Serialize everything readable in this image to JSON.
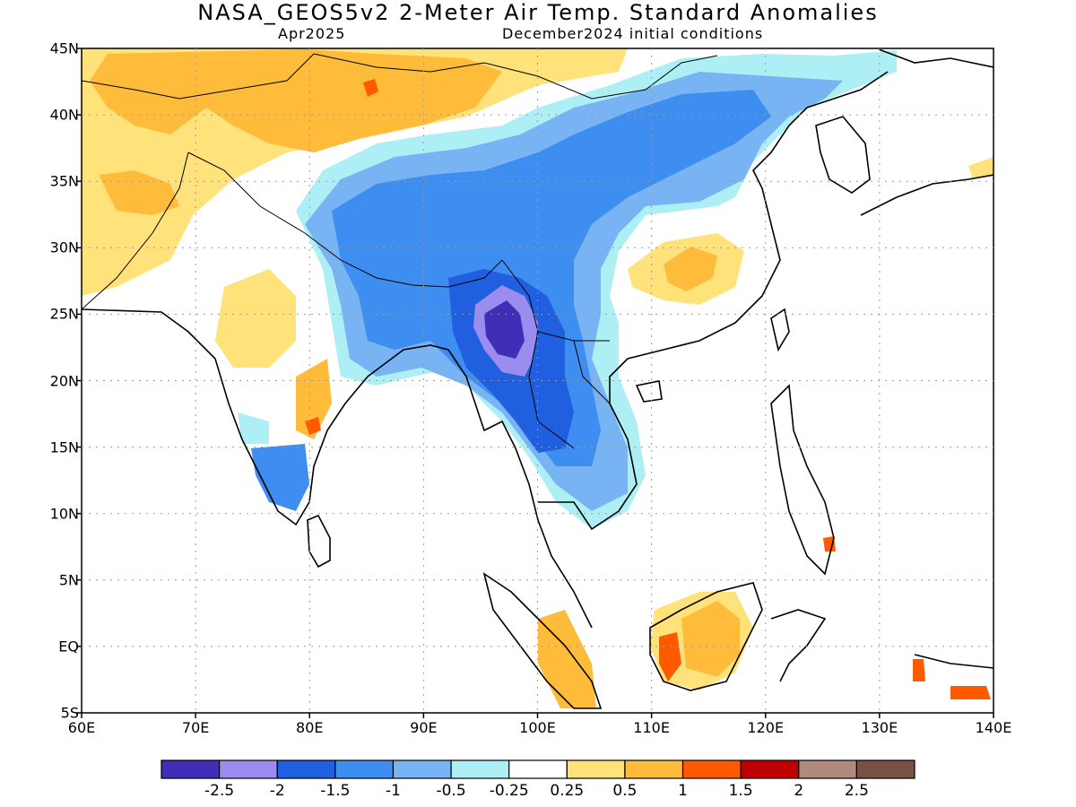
{
  "title": "NASA_GEOS5v2 2-Meter Air Temp. Standard Anomalies",
  "subtitle_left": "Apr2025",
  "subtitle_right": "December2024 initial conditions",
  "colors": {
    "m25": "#3f2fb8",
    "m2": "#9b8cf0",
    "m15": "#1f5fe0",
    "m1": "#3d8ef0",
    "m05": "#78b4f4",
    "m025": "#aeeef5",
    "neutral": "#ffffff",
    "p025": "#ffe27a",
    "p05": "#ffbb3a",
    "p1": "#ff5a00",
    "p15": "#c00000",
    "p2": "#b08a7c",
    "p25": "#7a5145"
  },
  "map": {
    "lon_range": [
      60,
      140
    ],
    "lat_range": [
      -5,
      45
    ],
    "y_ticks": [
      "45N",
      "40N",
      "35N",
      "30N",
      "25N",
      "20N",
      "15N",
      "10N",
      "5N",
      "EQ",
      "5S"
    ],
    "x_ticks": [
      "60E",
      "70E",
      "80E",
      "90E",
      "100E",
      "110E",
      "120E",
      "130E",
      "140E"
    ]
  },
  "colorbar": {
    "labels": [
      "-2.5",
      "-2",
      "-1.5",
      "-1",
      "-0.5",
      "-0.25",
      "0.25",
      "0.5",
      "1",
      "1.5",
      "2",
      "2.5"
    ]
  }
}
